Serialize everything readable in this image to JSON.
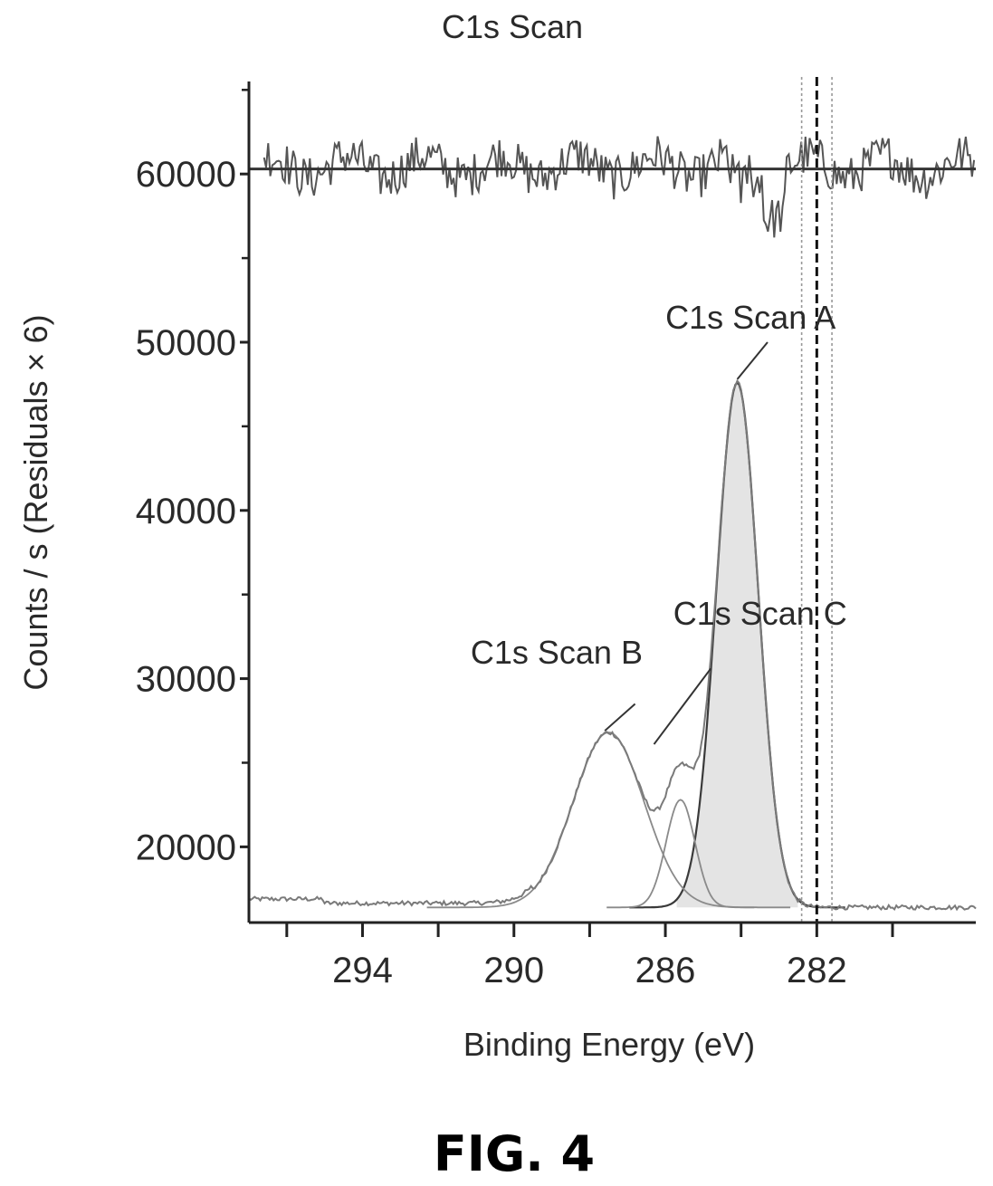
{
  "figure_label": "FIG. 4",
  "chart_data": {
    "type": "line",
    "title": "C1s Scan",
    "xlabel": "Binding Energy (eV)",
    "ylabel": "Counts / s  (Residuals × 6)",
    "x_reversed": true,
    "xlim": [
      297.0,
      277.8
    ],
    "ylim": [
      15500,
      65500
    ],
    "x_ticks": [
      294,
      290,
      286,
      282
    ],
    "x_minor_ticks": [
      296,
      292,
      288,
      284,
      280
    ],
    "y_ticks": [
      20000,
      30000,
      40000,
      50000,
      60000
    ],
    "y_minor_ticks": [
      25000,
      35000,
      45000,
      55000,
      65000
    ],
    "background_counts": 16400,
    "series": [
      {
        "name": "C1s Scan A",
        "peak_ev": 284.1,
        "peak_counts": 47600,
        "fwhm_ev": 1.3,
        "color": "#3a3a3a"
      },
      {
        "name": "C1s Scan B",
        "peak_ev": 287.5,
        "peak_counts": 26800,
        "fwhm_ev": 2.2,
        "color": "#8a8a8a"
      },
      {
        "name": "C1s Scan C",
        "peak_ev": 285.6,
        "peak_counts": 22800,
        "fwhm_ev": 0.9,
        "color": "#8a8a8a"
      }
    ],
    "reference_lines_ev": [
      282.0,
      281.6,
      282.4
    ],
    "residuals_baseline": 60300,
    "annotations": [
      {
        "text": "C1s Scan A",
        "label_ev": 281.5,
        "label_counts": 50800,
        "leader_from_ev": 283.3,
        "leader_from_counts": 50000,
        "leader_to_ev": 284.1,
        "leader_to_counts": 47800
      },
      {
        "text": "C1s Scan C",
        "label_ev": 281.2,
        "label_counts": 33200,
        "leader_from_ev": 284.8,
        "leader_from_counts": 30600,
        "leader_to_ev": 286.3,
        "leader_to_counts": 26100
      },
      {
        "text": "C1s Scan B",
        "label_ev": 286.6,
        "label_counts": 30900,
        "leader_from_ev": 286.8,
        "leader_from_counts": 28500,
        "leader_to_ev": 287.6,
        "leader_to_counts": 26900
      }
    ]
  }
}
